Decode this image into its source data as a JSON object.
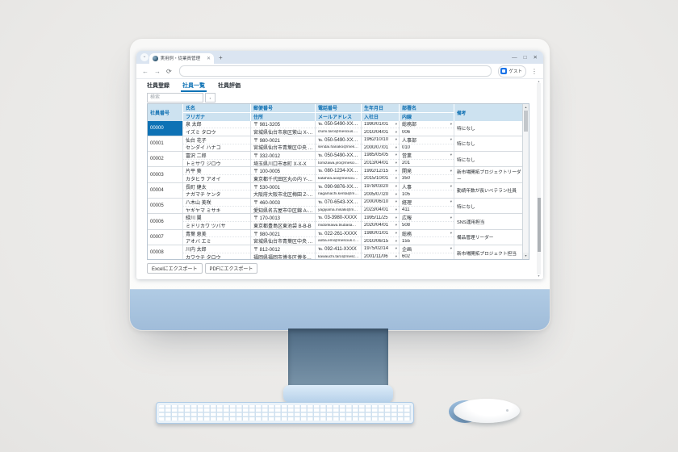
{
  "browser": {
    "tab": {
      "title": "実用例・従業員管理",
      "close_icon": "✕"
    },
    "tab_search_icon": "⌄",
    "new_tab_icon": "+",
    "window_controls": {
      "minimize": "—",
      "maximize": "□",
      "close": "✕"
    },
    "nav": {
      "back": "←",
      "forward": "→",
      "refresh": "⟳"
    },
    "address_value": "",
    "profile_label": "ゲスト",
    "menu_icon": "⋮"
  },
  "app": {
    "tabs": [
      {
        "label": "社員登録",
        "active": false
      },
      {
        "label": "社員一覧",
        "active": true
      },
      {
        "label": "社員評価",
        "active": false
      }
    ],
    "search": {
      "placeholder": "検索"
    },
    "table": {
      "columns": [
        {
          "top": "社員番号",
          "bottom": null
        },
        {
          "top": "氏名",
          "bottom": "フリガナ"
        },
        {
          "top": "郵便番号",
          "bottom": "住所"
        },
        {
          "top": "電話番号",
          "bottom": "メールアドレス"
        },
        {
          "top": "生年月日",
          "bottom": "入社日"
        },
        {
          "top": "部署名",
          "bottom": "内線"
        },
        {
          "top": "備考",
          "bottom": null
        }
      ],
      "rows": [
        {
          "id": "00000",
          "name": "泉 太郎",
          "kana": "イズミ タロウ",
          "postal": "〒 981-3205",
          "address": "宮城県仙台市泉区紫山 X-X-X",
          "phone": "℡ 050-5490-XXXX",
          "email": "izumi.taro@mescius.com",
          "birth": "1990/01/01",
          "hire": "2010/04/01",
          "dept": "総務部",
          "ext": "006",
          "note": "特になし",
          "selected": true
        },
        {
          "id": "00001",
          "name": "仙台 花子",
          "kana": "センダイ ハナコ",
          "postal": "〒 980-0021",
          "address": "宮城県仙台市青葉区中央 X-X-X",
          "phone": "℡ 050-5490-XXXX",
          "email": "sendai.hanako@mescius.com",
          "birth": "1962/10/10",
          "hire": "2000/07/01",
          "dept": "人事部",
          "ext": "010",
          "note": "特になし",
          "selected": false
        },
        {
          "id": "00002",
          "name": "富沢 二郎",
          "kana": "トミサワ ジロウ",
          "postal": "〒 332-0012",
          "address": "埼玉県川口市本町 X-X-X",
          "phone": "℡ 050-5490-XXXX",
          "email": "tomizawa.jiro@mescius.com",
          "birth": "1985/05/05",
          "hire": "2013/04/01",
          "dept": "営業",
          "ext": "201",
          "note": "特になし",
          "selected": false
        },
        {
          "id": "00003",
          "name": "片平 葵",
          "kana": "カタヒラ アオイ",
          "postal": "〒 100-0005",
          "address": "東京都千代田区丸の内 Y-Y-Y",
          "phone": "℡ 080-1234-XXXX",
          "email": "katahira.aoi@mescius.com",
          "birth": "1992/12/15",
          "hire": "2015/10/01",
          "dept": "開発",
          "ext": "350",
          "note": "新市場開拓プロジェクトリーダー",
          "selected": false
        },
        {
          "id": "00004",
          "name": "長町 健太",
          "kana": "ナガマチ ケンタ",
          "postal": "〒 530-0001",
          "address": "大阪府大阪市北区梅田 Z-Z-Z",
          "phone": "℡ 090-9876-XXXX",
          "email": "nagamachi.kenta@mescius.com",
          "birth": "1978/03/20",
          "hire": "2005/07/20",
          "dept": "人事",
          "ext": "105",
          "note": "勤続年数が長いベテラン社員",
          "selected": false
        },
        {
          "id": "00005",
          "name": "八木山 美咲",
          "kana": "ヤギヤマ ミサキ",
          "postal": "〒 460-0003",
          "address": "愛知県名古屋市中区錦 A-A-A",
          "phone": "℡ 070-6543-XXXX",
          "email": "yagiyama.misaki@mescius.com",
          "birth": "2000/06/10",
          "hire": "2023/04/01",
          "dept": "経理",
          "ext": "411",
          "note": "特になし",
          "selected": false
        },
        {
          "id": "00006",
          "name": "緑川 翼",
          "kana": "ミドリカワ ツバサ",
          "postal": "〒 170-0013",
          "address": "東京都豊島区東池袋 B-B-B",
          "phone": "℡ 03-3980-XXXX",
          "email": "midorikawa.tsubasa@mescius.com",
          "birth": "1995/11/25",
          "hire": "2020/04/01",
          "dept": "広報",
          "ext": "508",
          "note": "SNS運用担当",
          "selected": false
        },
        {
          "id": "00007",
          "name": "青葉 恵美",
          "kana": "アオバ エミ",
          "postal": "〒 980-0021",
          "address": "宮城県仙台市青葉区中央 C-C-C",
          "phone": "℡ 022-261-XXXX",
          "email": "aoba.emi@mescius.com",
          "birth": "1980/01/01",
          "hire": "2010/06/15",
          "dept": "総務",
          "ext": "155",
          "note": "備品管理リーダー",
          "selected": false
        },
        {
          "id": "00008",
          "name": "川内 太郎",
          "kana": "カワウチ タロウ",
          "postal": "〒 812-0012",
          "address": "福岡県福岡市博多区博多駅中央街",
          "phone": "℡ 092-411-XXXX",
          "email": "kawauchi.taro@mescius.com",
          "birth": "1975/02/14",
          "hire": "2001/11/06",
          "dept": "企画",
          "ext": "602",
          "note": "新市場開拓プロジェクト担当",
          "selected": false
        }
      ]
    },
    "export_buttons": [
      {
        "label": "Excelにエクスポート"
      },
      {
        "label": "PDFにエクスポート"
      }
    ]
  },
  "icons": {
    "scroll_up": "▲",
    "scroll_down": "▼",
    "combo_arrow": "▾",
    "search_button": "▪"
  },
  "colors": {
    "accent_blue": "#0e72b5",
    "grid_header_bg": "#cde2f0",
    "grid_header_text": "#0d6fb2",
    "selected_cell_text": "#ffffff",
    "chin_blue": "#a7c3df",
    "tabstrip_bg": "#dbe5f1",
    "profile_icon_blue": "#1a73e8",
    "desk_bg": "#ecebe9"
  }
}
